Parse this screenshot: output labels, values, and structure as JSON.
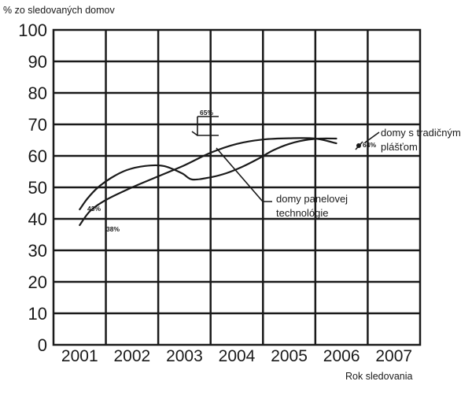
{
  "chart_data": {
    "type": "line",
    "title": "",
    "ylabel": "% zo sledovaných domov",
    "xlabel": "Rok sledovania",
    "categories": [
      "2001",
      "2002",
      "2003",
      "2004",
      "2005",
      "2006",
      "2007"
    ],
    "yticks": [
      "0",
      "10",
      "20",
      "30",
      "40",
      "50",
      "60",
      "70",
      "80",
      "90",
      "100"
    ],
    "ylim": [
      0,
      100
    ],
    "grid": true,
    "series": [
      {
        "name": "domy s tradičným plášťom",
        "x": [
          2001.5,
          2001.7,
          2002.0,
          2002.5,
          2003.0,
          2003.5,
          2004.0,
          2004.5,
          2005.0,
          2005.5,
          2006.0,
          2006.4
        ],
        "values": [
          38,
          42.5,
          46,
          50,
          53.5,
          57,
          61,
          63.8,
          65.2,
          65.6,
          65.5,
          64
        ]
      },
      {
        "name": "domy panelovej technológie",
        "x": [
          2001.5,
          2001.65,
          2001.85,
          2002.1,
          2002.4,
          2002.75,
          2003.1,
          2003.45,
          2003.65,
          2004.0,
          2004.3,
          2004.6,
          2004.9,
          2005.2,
          2005.5,
          2005.8,
          2006.1,
          2006.4
        ],
        "values": [
          43,
          46.5,
          50,
          53,
          55.5,
          56.8,
          56.8,
          54.5,
          52.5,
          53.2,
          54.5,
          56.5,
          59,
          61.8,
          63.8,
          65,
          65.5,
          65.5
        ]
      }
    ],
    "annotations": [
      {
        "text": "43%",
        "x": 2001.5,
        "y": 43
      },
      {
        "text": "38%",
        "x": 2001.5,
        "y": 38
      },
      {
        "text": "65%",
        "x": 2003.4,
        "y": 69
      },
      {
        "text": "64%",
        "x": 2006.4,
        "y": 64
      }
    ]
  },
  "legend": {
    "traditional_line1": "domy s tradičným",
    "traditional_line2": "plášťom",
    "panel_line1": "domy panelovej",
    "panel_line2": "technológie"
  },
  "labels": {
    "pt_43": "43%",
    "pt_38": "38%",
    "pt_65": "65%",
    "pt_64": "64%"
  }
}
